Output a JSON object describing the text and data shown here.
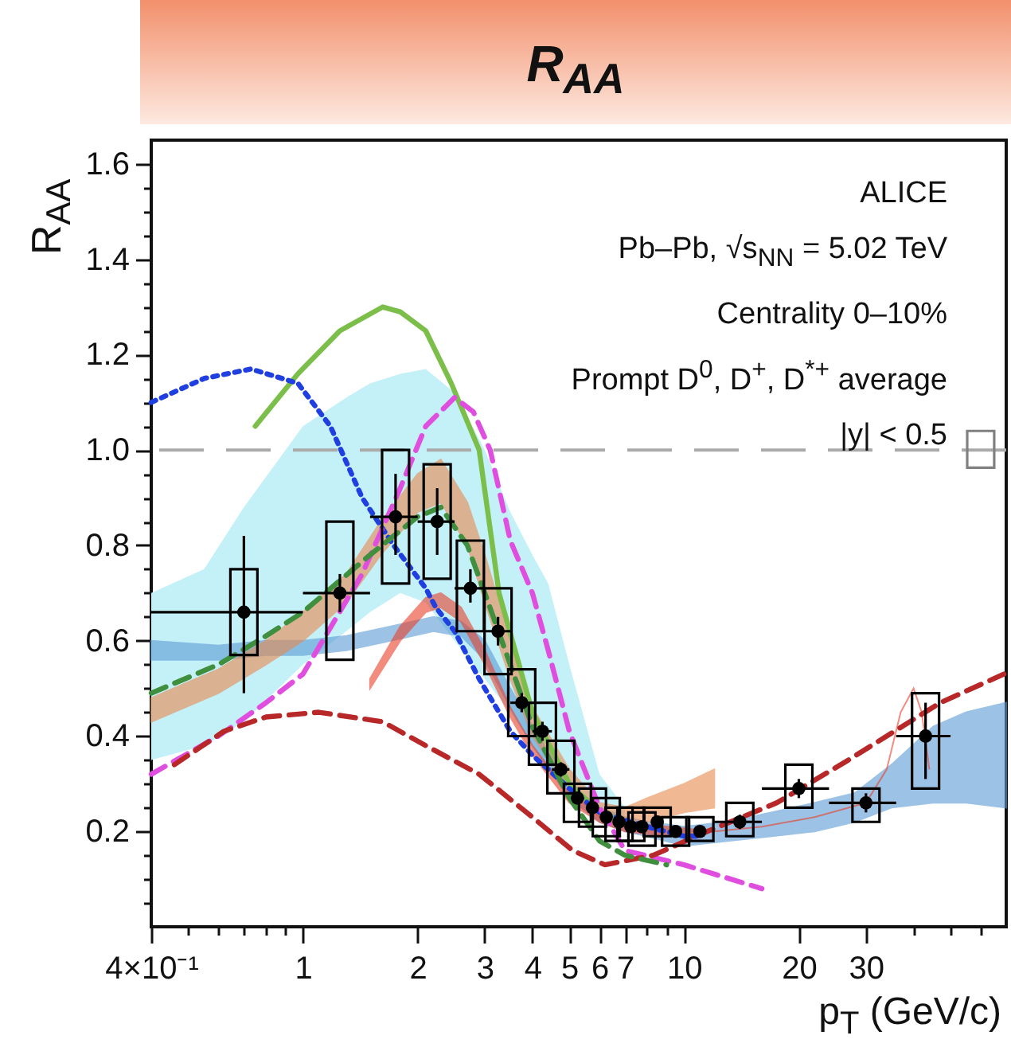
{
  "chart_data": {
    "type": "scatter",
    "title": "R$_{AA}$",
    "ylabel": "R$_{AA}$",
    "xlabel": "p$_{T}$ (GeV/c)",
    "annotations": [
      "ALICE",
      "Pb–Pb, √s$_{NN}$ = 5.02 TeV",
      "Centrality 0–10%",
      "Prompt D$^{0}$, D$^{+}$, D$^{*+}$ average",
      "|y| < 0.5"
    ],
    "log": "x",
    "xlim": [
      0.4,
      70
    ],
    "ylim": [
      0,
      1.65
    ],
    "xticks": [
      {
        "value": 0.4,
        "label": "4×10⁻¹"
      },
      {
        "value": 0.5,
        "label": null
      },
      {
        "value": 0.6,
        "label": null
      },
      {
        "value": 0.7,
        "label": null
      },
      {
        "value": 0.8,
        "label": null
      },
      {
        "value": 0.9,
        "label": null
      },
      1,
      2,
      3,
      4,
      5,
      6,
      7,
      {
        "value": 8,
        "label": null
      },
      {
        "value": 9,
        "label": null
      },
      10,
      20,
      30,
      {
        "value": 40,
        "label": null
      },
      {
        "value": 50,
        "label": null
      },
      {
        "value": 60,
        "label": null
      }
    ],
    "yticks": [
      {
        "value": 0.05,
        "label": null
      },
      {
        "value": 0.1,
        "label": null
      },
      {
        "value": 0.15,
        "label": null
      },
      0.2,
      {
        "value": 0.25,
        "label": null
      },
      {
        "value": 0.3,
        "label": null
      },
      {
        "value": 0.35,
        "label": null
      },
      0.4,
      {
        "value": 0.45,
        "label": null
      },
      {
        "value": 0.5,
        "label": null
      },
      {
        "value": 0.55,
        "label": null
      },
      0.6,
      {
        "value": 0.65,
        "label": null
      },
      {
        "value": 0.7,
        "label": null
      },
      {
        "value": 0.75,
        "label": null
      },
      0.8,
      {
        "value": 0.85,
        "label": null
      },
      {
        "value": 0.9,
        "label": null
      },
      {
        "value": 0.95,
        "label": null
      },
      {
        "value": 1,
        "label": "1.0"
      },
      {
        "value": 1.05,
        "label": null
      },
      {
        "value": 1.1,
        "label": null
      },
      {
        "value": 1.15,
        "label": null
      },
      1.2,
      {
        "value": 1.25,
        "label": null
      },
      {
        "value": 1.3,
        "label": null
      },
      {
        "value": 1.35,
        "label": null
      },
      1.4,
      {
        "value": 1.45,
        "label": null
      },
      {
        "value": 1.5,
        "label": null
      },
      {
        "value": 1.55,
        "label": null
      },
      1.6
    ],
    "ref_lines": [
      {
        "axis": "y",
        "value": 1,
        "color": "#aaaaaa",
        "line_style": "dashed"
      }
    ],
    "series": [
      {
        "type": "line",
        "color": "#c4f0f8",
        "x": [
          0.4,
          0.55,
          0.7,
          1.0,
          1.3,
          1.5,
          1.8,
          2.1,
          2.5,
          3,
          3.5,
          4,
          4.4,
          5,
          6,
          7
        ],
        "values": [
          null,
          null,
          null,
          null,
          null,
          null,
          null,
          null,
          null,
          null,
          null,
          null,
          null,
          null,
          null,
          null
        ],
        "lower": [
          0.35,
          0.38,
          0.43,
          0.55,
          0.62,
          0.66,
          0.7,
          0.68,
          0.6,
          0.52,
          0.45,
          0.38,
          0.33,
          0.28,
          0.23,
          0.22
        ],
        "upper": [
          0.7,
          0.75,
          0.88,
          1.05,
          1.11,
          1.14,
          1.16,
          1.17,
          1.12,
          1.0,
          0.87,
          0.78,
          0.72,
          0.55,
          0.32,
          0.25
        ]
      },
      {
        "type": "line",
        "color": "#5b9bd5",
        "x": [
          0.4,
          0.6,
          0.8,
          1.0,
          1.3,
          1.7,
          2.2,
          2.6,
          3.0,
          3.5,
          4,
          5,
          6,
          7,
          8,
          10,
          13,
          17,
          22,
          28,
          35,
          45,
          55,
          70
        ],
        "values": [
          null,
          null,
          null,
          null,
          null,
          null,
          null,
          null,
          null,
          null,
          null,
          null,
          null,
          null,
          null,
          null,
          null,
          null,
          null,
          null,
          null,
          null,
          null,
          null
        ],
        "lower": [
          0.56,
          0.56,
          0.57,
          0.57,
          0.58,
          0.6,
          0.62,
          0.61,
          0.56,
          0.46,
          0.38,
          0.27,
          0.22,
          0.2,
          0.19,
          0.17,
          0.18,
          0.19,
          0.2,
          0.22,
          0.25,
          0.26,
          0.26,
          0.25
        ],
        "upper": [
          0.6,
          0.59,
          0.6,
          0.6,
          0.61,
          0.63,
          0.65,
          0.64,
          0.6,
          0.5,
          0.42,
          0.3,
          0.25,
          0.23,
          0.22,
          0.21,
          0.22,
          0.24,
          0.26,
          0.28,
          0.34,
          0.42,
          0.45,
          0.47
        ]
      },
      {
        "type": "line",
        "color": "#e9894e",
        "x": [
          0.4,
          0.6,
          0.8,
          1.0,
          1.3,
          1.6,
          2.0,
          2.3,
          2.7,
          3.0,
          3.5,
          4,
          5,
          6,
          7,
          8,
          10,
          12
        ],
        "values": [
          null,
          null,
          null,
          null,
          null,
          null,
          null,
          null,
          null,
          null,
          null,
          null,
          null,
          null,
          null,
          null,
          null,
          null
        ],
        "lower": [
          0.43,
          0.49,
          0.55,
          0.6,
          0.68,
          0.78,
          0.87,
          0.89,
          0.8,
          0.68,
          0.52,
          0.4,
          0.29,
          0.23,
          0.22,
          0.22,
          0.24,
          0.25
        ],
        "upper": [
          0.48,
          0.54,
          0.6,
          0.66,
          0.74,
          0.85,
          0.95,
          0.98,
          0.89,
          0.78,
          0.6,
          0.46,
          0.33,
          0.26,
          0.25,
          0.27,
          0.3,
          0.33
        ]
      },
      {
        "type": "line",
        "color": "#e8402a",
        "x": [
          1.5,
          1.8,
          2.1,
          2.3,
          2.6,
          3,
          3.5,
          4,
          5,
          6,
          7,
          9,
          12,
          16,
          22,
          30,
          34,
          37,
          40,
          42,
          44
        ],
        "values": [
          null,
          null,
          null,
          null,
          null,
          null,
          null,
          null,
          null,
          null,
          null,
          null,
          null,
          null,
          null,
          null,
          null,
          null,
          null,
          null,
          null
        ],
        "lower": [
          0.5,
          0.6,
          0.66,
          0.67,
          0.64,
          0.55,
          0.44,
          0.36,
          0.26,
          0.22,
          0.2,
          0.19,
          0.2,
          0.21,
          0.23,
          0.26,
          0.33,
          0.45,
          0.5,
          0.45,
          0.33
        ],
        "upper": [
          0.52,
          0.63,
          0.69,
          0.7,
          0.67,
          0.58,
          0.46,
          0.38,
          0.28,
          0.24,
          0.22,
          0.21,
          0.2,
          0.21,
          0.23,
          0.26,
          0.33,
          0.45,
          0.5,
          0.45,
          0.33
        ]
      },
      {
        "type": "line",
        "color": "#7bbf4a",
        "line_style": "solid",
        "x": [
          0.75,
          0.97,
          1.25,
          1.62,
          1.8,
          2.1,
          2.45,
          2.9,
          3.27,
          4,
          5,
          6,
          7
        ],
        "values": [
          1.05,
          1.16,
          1.25,
          1.3,
          1.29,
          1.25,
          1.14,
          1.0,
          0.7,
          0.45,
          0.3,
          0.24,
          0.22
        ]
      },
      {
        "type": "line",
        "color": "#1f3fe0",
        "line_style": "dotted",
        "x": [
          0.4,
          0.55,
          0.73,
          0.97,
          1.18,
          1.43,
          1.73,
          2.1,
          2.23,
          2.5,
          2.9,
          3.5,
          4,
          5,
          6,
          8,
          10,
          11
        ],
        "values": [
          1.1,
          1.15,
          1.17,
          1.14,
          1.05,
          0.9,
          0.8,
          0.71,
          0.67,
          0.62,
          0.52,
          0.41,
          0.36,
          0.29,
          0.24,
          0.21,
          0.19,
          0.19
        ]
      },
      {
        "type": "line",
        "color": "#e04ee0",
        "line_style": "dashed",
        "x": [
          0.4,
          0.6,
          0.8,
          1.0,
          1.43,
          1.8,
          2.1,
          2.5,
          2.8,
          3.1,
          3.5,
          4,
          4.4,
          5,
          6,
          7,
          10,
          16
        ],
        "values": [
          0.32,
          0.4,
          0.47,
          0.53,
          0.74,
          0.92,
          1.05,
          1.11,
          1.08,
          1.0,
          0.81,
          0.7,
          0.58,
          0.41,
          0.25,
          0.16,
          0.13,
          0.08
        ]
      },
      {
        "type": "line",
        "color": "#b82828",
        "line_style": "dashed",
        "x": [
          0.46,
          0.62,
          0.8,
          1.1,
          1.62,
          2.1,
          2.9,
          4,
          5.1,
          6.2,
          8.3,
          11.5,
          17.5,
          27,
          47,
          69
        ],
        "values": [
          0.34,
          0.41,
          0.44,
          0.45,
          0.43,
          0.38,
          0.32,
          0.23,
          0.16,
          0.13,
          0.15,
          0.2,
          0.26,
          0.35,
          0.47,
          0.53
        ]
      },
      {
        "type": "line",
        "color": "#3f8f3f",
        "line_style": "dashed",
        "x": [
          0.4,
          0.6,
          0.8,
          1.0,
          1.5,
          2.0,
          2.3,
          2.7,
          3.0,
          3.5,
          4,
          5,
          6,
          7,
          9
        ],
        "values": [
          0.49,
          0.55,
          0.61,
          0.66,
          0.78,
          0.86,
          0.88,
          0.8,
          0.7,
          0.55,
          0.42,
          0.27,
          0.18,
          0.15,
          0.13
        ]
      },
      {
        "type": "bar",
        "color": "#000000",
        "x": [
          0.7,
          1.25,
          1.75,
          2.25,
          2.75,
          3.25,
          3.75,
          4.25,
          4.75,
          5.25,
          5.75,
          6.25,
          6.75,
          7.25,
          7.75,
          8.5,
          9.5,
          11,
          14,
          20,
          30,
          43
        ],
        "base": [
          0.57,
          0.56,
          0.72,
          0.73,
          0.62,
          0.53,
          0.4,
          0.34,
          0.28,
          0.22,
          0.21,
          0.19,
          0.18,
          0.18,
          0.17,
          0.19,
          0.17,
          0.18,
          0.19,
          0.25,
          0.22,
          0.29
        ],
        "values": [
          0.18,
          0.29,
          0.28,
          0.24,
          0.19,
          0.18,
          0.14,
          0.13,
          0.11,
          0.08,
          0.08,
          0.08,
          0.07,
          0.07,
          0.07,
          0.06,
          0.06,
          0.05,
          0.07,
          0.09,
          0.07,
          0.2
        ]
      },
      {
        "type": "bar",
        "color": "#808080",
        "x": [
          60
        ],
        "base": [
          0.963
        ],
        "values": [
          0.077
        ]
      },
      {
        "color": "#000000",
        "marker": "circle",
        "x": [
          0.7,
          1.25,
          1.75,
          2.25,
          2.75,
          3.25,
          3.75,
          4.25,
          4.75,
          5.25,
          5.75,
          6.25,
          6.75,
          7.25,
          7.75,
          8.5,
          9.5,
          11,
          14,
          20,
          30,
          43
        ],
        "values": [
          0.66,
          0.7,
          0.86,
          0.85,
          0.71,
          0.62,
          0.47,
          0.41,
          0.33,
          0.27,
          0.25,
          0.23,
          0.22,
          0.21,
          0.21,
          0.22,
          0.2,
          0.2,
          0.22,
          0.29,
          0.26,
          0.4
        ],
        "errors": [
          [
            0.49,
            0.82
          ],
          [
            0.66,
            0.74
          ],
          [
            0.78,
            0.95
          ],
          [
            0.78,
            0.92
          ],
          [
            0.68,
            0.75
          ],
          [
            0.59,
            0.65
          ],
          0.02,
          0.02,
          0.015,
          0.01,
          0.01,
          0.01,
          0.01,
          0.01,
          0.01,
          0.01,
          0.01,
          0.01,
          0.015,
          0.02,
          0.02,
          [
            0.31,
            0.47
          ]
        ],
        "xerrors": [
          [
            0.4,
            1.0
          ],
          [
            1,
            1.5
          ],
          [
            1.5,
            2
          ],
          [
            2,
            2.5
          ],
          [
            2.5,
            3
          ],
          [
            3,
            3.5
          ],
          [
            3.5,
            4
          ],
          [
            4,
            4.5
          ],
          [
            4.5,
            5
          ],
          null,
          null,
          null,
          null,
          null,
          null,
          null,
          null,
          null,
          [
            12,
            16
          ],
          [
            16,
            24
          ],
          [
            24,
            36
          ],
          [
            36,
            50
          ]
        ]
      }
    ]
  }
}
